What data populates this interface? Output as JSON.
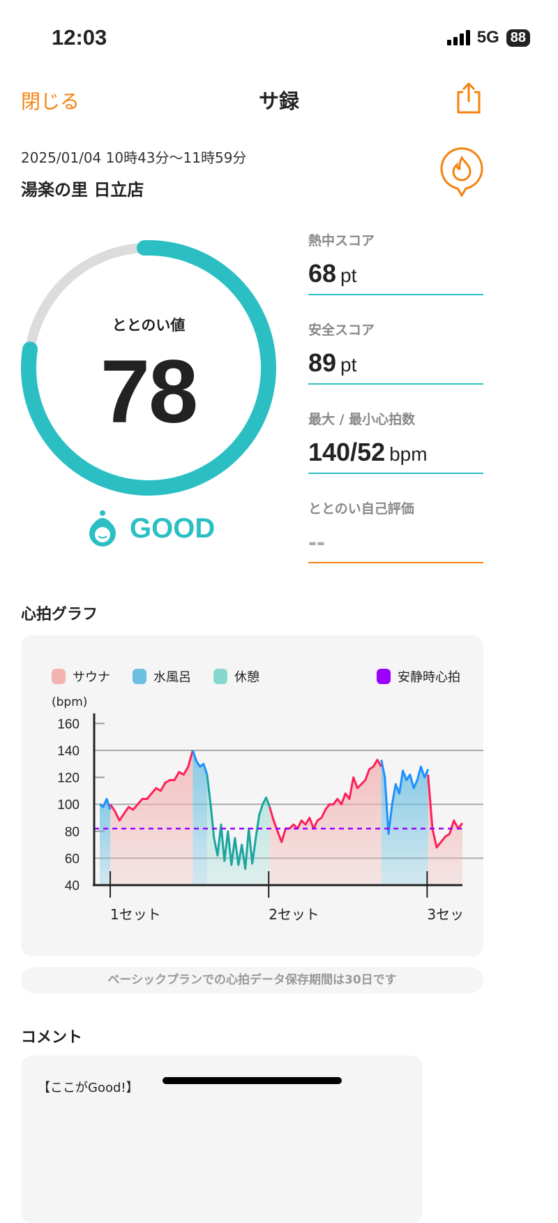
{
  "status": {
    "time": "12:03",
    "network": "5G",
    "battery": "88"
  },
  "nav": {
    "close": "閉じる",
    "title": "サ録"
  },
  "session": {
    "date": "2025/01/04 10時43分〜11時59分",
    "place": "湯楽の里 日立店"
  },
  "score": {
    "label": "ととのい値",
    "value": "78",
    "percent": 78,
    "rating": "GOOD"
  },
  "stats": [
    {
      "label": "熱中スコア",
      "value": "68",
      "unit": "pt"
    },
    {
      "label": "安全スコア",
      "value": "89",
      "unit": "pt"
    },
    {
      "label": "最大 / 最小心拍数",
      "value": "140/52",
      "unit": "bpm"
    },
    {
      "label": "ととのい自己評価",
      "value": "--",
      "unit": ""
    }
  ],
  "graph": {
    "title": "心拍グラフ",
    "notice": "ベーシックプランでの心拍データ保存期間は30日です"
  },
  "comment": {
    "title": "コメント",
    "text": "【ここがGood!】"
  },
  "colors": {
    "accent": "#f5820c",
    "teal": "#2bbfc4",
    "sauna": "#ff1f5a",
    "water": "#1e8fff",
    "rest": "#1aa5a0",
    "resting": "#9b30ff"
  },
  "chart_data": {
    "type": "line",
    "ylabel": "(bpm)",
    "ylim": [
      30,
      165
    ],
    "yticks": [
      160,
      140,
      120,
      100,
      80,
      60,
      40
    ],
    "xlim": [
      0,
      76
    ],
    "xticks": [
      {
        "t": 2.2,
        "label": "1セット"
      },
      {
        "t": 35.4,
        "label": "2セット"
      },
      {
        "t": 68.6,
        "label": "3セッ"
      }
    ],
    "legend": [
      {
        "name": "サウナ",
        "color": "#f2b3b3"
      },
      {
        "name": "水風呂",
        "color": "#6bbfe0"
      },
      {
        "name": "休憩",
        "color": "#86d8cf"
      }
    ],
    "resting": {
      "name": "安静時心拍",
      "value": 82,
      "color": "#9b00ff"
    },
    "phases": [
      {
        "type": "water",
        "start": 0,
        "end": 2.2,
        "values": [
          100,
          98,
          104,
          96
        ]
      },
      {
        "type": "sauna",
        "start": 2.2,
        "end": 19.5,
        "values": [
          100,
          95,
          88,
          93,
          98,
          96,
          100,
          104,
          104,
          108,
          112,
          110,
          116,
          118,
          118,
          124,
          122,
          128,
          140
        ]
      },
      {
        "type": "water",
        "start": 19.5,
        "end": 22.5,
        "values": [
          140,
          132,
          128,
          130,
          122
        ]
      },
      {
        "type": "rest",
        "start": 22.5,
        "end": 35.6,
        "values": [
          122,
          100,
          75,
          62,
          85,
          58,
          80,
          55,
          75,
          55,
          70,
          52,
          82,
          56,
          75,
          92,
          100,
          105,
          98
        ]
      },
      {
        "type": "sauna",
        "start": 35.6,
        "end": 59,
        "values": [
          98,
          88,
          80,
          72,
          82,
          82,
          85,
          82,
          88,
          85,
          90,
          82,
          88,
          90,
          96,
          100,
          100,
          104,
          100,
          108,
          104,
          120,
          112,
          115,
          118,
          126,
          128,
          133,
          128
        ]
      },
      {
        "type": "water",
        "start": 59,
        "end": 68.8,
        "values": [
          133,
          120,
          78,
          100,
          115,
          108,
          125,
          118,
          122,
          112,
          118,
          128,
          120,
          126
        ]
      },
      {
        "type": "sauna",
        "start": 68.8,
        "end": 76,
        "values": [
          122,
          82,
          68,
          72,
          76,
          78,
          88,
          82,
          86
        ]
      }
    ]
  }
}
